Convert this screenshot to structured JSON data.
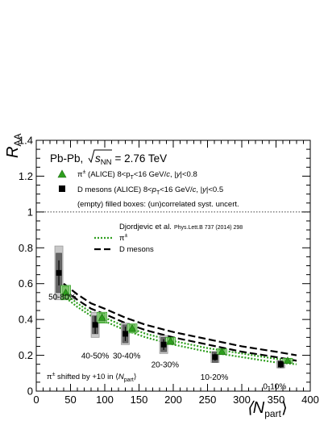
{
  "chart_data": {
    "type": "scatter",
    "header": {
      "system": "Pb-Pb,",
      "sqrt_s": "s",
      "sqrt_sub": "NN",
      "energy": "= 2.76 TeV"
    },
    "ylabel": {
      "main": "R",
      "sub": "AA"
    },
    "xlabel": {
      "main": "⟨N",
      "sub": "part",
      "end": "⟩"
    },
    "xlim": [
      0,
      400
    ],
    "ylim": [
      0,
      1.4
    ],
    "x_ticks": [
      "0",
      "50",
      "100",
      "150",
      "200",
      "250",
      "300",
      "350",
      "400"
    ],
    "y_ticks": [
      "0",
      "0.2",
      "0.4",
      "0.6",
      "0.8",
      "1",
      "1.2",
      "1.4"
    ],
    "reference_line_y": 1,
    "legend": {
      "pion": {
        "a": "π",
        "b": "±",
        "c": " (ALICE) 8<p",
        "d": "T",
        "e": "<16 GeV/",
        "f": "c",
        "g": ", |",
        "h": "y",
        "i": "|<0.8"
      },
      "dmeson": {
        "a": "D mesons (ALICE) 8<",
        "b": "p",
        "c": "T",
        "d": "<16 GeV/",
        "e": "c",
        "f": ", |",
        "g": "y",
        "h": "|<0.5"
      },
      "boxes": "(empty) filled boxes: (un)correlated syst. uncert."
    },
    "theory": {
      "title": "Djordjevic et al.",
      "ref": "Phys.Lett.B 737 (2014) 298",
      "pion_label_a": "π",
      "pion_label_b": "±",
      "dmeson_label": "D mesons"
    },
    "shift_note": {
      "a": "π",
      "b": "±",
      "c": " shifted by +10 in ⟨",
      "d": "N",
      "e": "part",
      "f": "⟩"
    },
    "centrality_labels": [
      "50-80%",
      "40-50%",
      "30-40%",
      "20-30%",
      "10-20%",
      "0-10%"
    ],
    "series": [
      {
        "name": "D mesons (ALICE)",
        "marker": "square",
        "color": "#000000",
        "x": [
          33,
          86,
          130,
          186,
          261,
          357
        ],
        "y": [
          0.66,
          0.37,
          0.32,
          0.26,
          0.19,
          0.15
        ],
        "stat_err": [
          0.07,
          0.05,
          0.04,
          0.03,
          0.02,
          0.02
        ],
        "syst_uncorr": [
          0.11,
          0.05,
          0.05,
          0.04,
          0.03,
          0.02
        ],
        "syst_corr": [
          0.15,
          0.07,
          0.06,
          0.05,
          0.03,
          0.02
        ]
      },
      {
        "name": "π± (ALICE)",
        "marker": "triangle",
        "color": "#2e9e1e",
        "x": [
          43,
          96,
          140,
          196,
          271,
          367
        ],
        "y": [
          0.55,
          0.41,
          0.35,
          0.28,
          0.22,
          0.17
        ],
        "syst_uncorr": [
          0.035,
          0.025,
          0.02,
          0.017,
          0.013,
          0.011
        ],
        "syst_corr": [
          0.04,
          0.03,
          0.025,
          0.02,
          0.016,
          0.013
        ]
      }
    ],
    "theory_curves": [
      {
        "name": "π±",
        "style": "dotted",
        "color": "#2e9e1e",
        "x": [
          40,
          60,
          80,
          100,
          130,
          160,
          200,
          250,
          300,
          350,
          380
        ],
        "upper": [
          0.55,
          0.49,
          0.44,
          0.41,
          0.36,
          0.32,
          0.28,
          0.24,
          0.21,
          0.18,
          0.17
        ],
        "lower": [
          0.53,
          0.47,
          0.42,
          0.39,
          0.34,
          0.3,
          0.26,
          0.22,
          0.19,
          0.16,
          0.15
        ]
      },
      {
        "name": "D mesons",
        "style": "dashed",
        "color": "#000000",
        "x": [
          40,
          60,
          80,
          100,
          130,
          160,
          200,
          250,
          300,
          350,
          380
        ],
        "upper": [
          0.6,
          0.54,
          0.49,
          0.46,
          0.41,
          0.37,
          0.33,
          0.29,
          0.25,
          0.22,
          0.2
        ],
        "lower": [
          0.57,
          0.51,
          0.46,
          0.43,
          0.38,
          0.34,
          0.3,
          0.26,
          0.22,
          0.19,
          0.17
        ]
      }
    ]
  }
}
